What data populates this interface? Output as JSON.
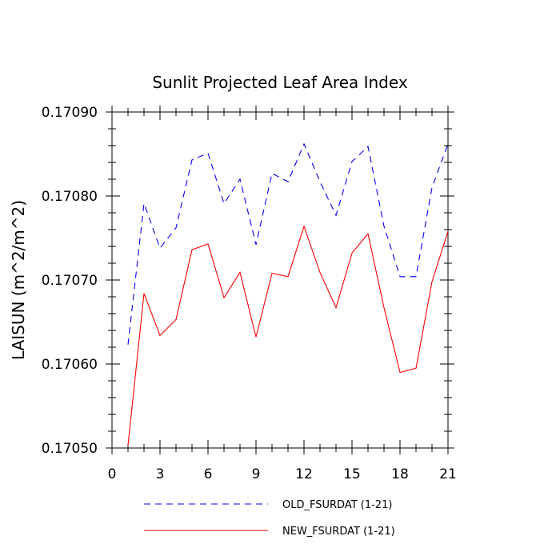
{
  "chart_data": {
    "type": "line",
    "title": "Sunlit Projected Leaf Area Index",
    "ylabel": "LAISUN  (m^2/m^2)",
    "xlabel": "",
    "xlim": [
      0,
      21
    ],
    "ylim": [
      0.1705,
      0.1709
    ],
    "x_ticks": [
      0,
      3,
      6,
      9,
      12,
      15,
      18,
      21
    ],
    "x_tick_labels": [
      "0",
      "3",
      "6",
      "9",
      "12",
      "15",
      "18",
      "21"
    ],
    "y_ticks": [
      0.1705,
      0.1706,
      0.1707,
      0.1708,
      0.1709
    ],
    "y_tick_labels": [
      "0.17050",
      "0.17060",
      "0.17070",
      "0.17080",
      "0.17090"
    ],
    "grid": false,
    "legend_position": "bottom",
    "x": [
      1,
      2,
      3,
      4,
      5,
      6,
      7,
      8,
      9,
      10,
      11,
      12,
      13,
      14,
      15,
      16,
      17,
      18,
      19,
      20,
      21
    ],
    "series": [
      {
        "name": "OLD_FSURDAT (1-21)",
        "color": "#0000ff",
        "dash": "dashed",
        "values": [
          0.170623,
          0.170791,
          0.170738,
          0.170762,
          0.170843,
          0.170851,
          0.170791,
          0.17082,
          0.170742,
          0.170827,
          0.170817,
          0.170862,
          0.170817,
          0.170777,
          0.170841,
          0.170859,
          0.170764,
          0.170704,
          0.170704,
          0.17081,
          0.170862
        ]
      },
      {
        "name": "NEW_FSURDAT (1-21)",
        "color": "#ff0000",
        "dash": "solid",
        "values": [
          0.170503,
          0.170684,
          0.170634,
          0.170653,
          0.170736,
          0.170743,
          0.170679,
          0.170709,
          0.170632,
          0.170708,
          0.170704,
          0.170764,
          0.170709,
          0.170667,
          0.170732,
          0.170755,
          0.170667,
          0.17059,
          0.170595,
          0.170698,
          0.170758
        ]
      }
    ]
  }
}
